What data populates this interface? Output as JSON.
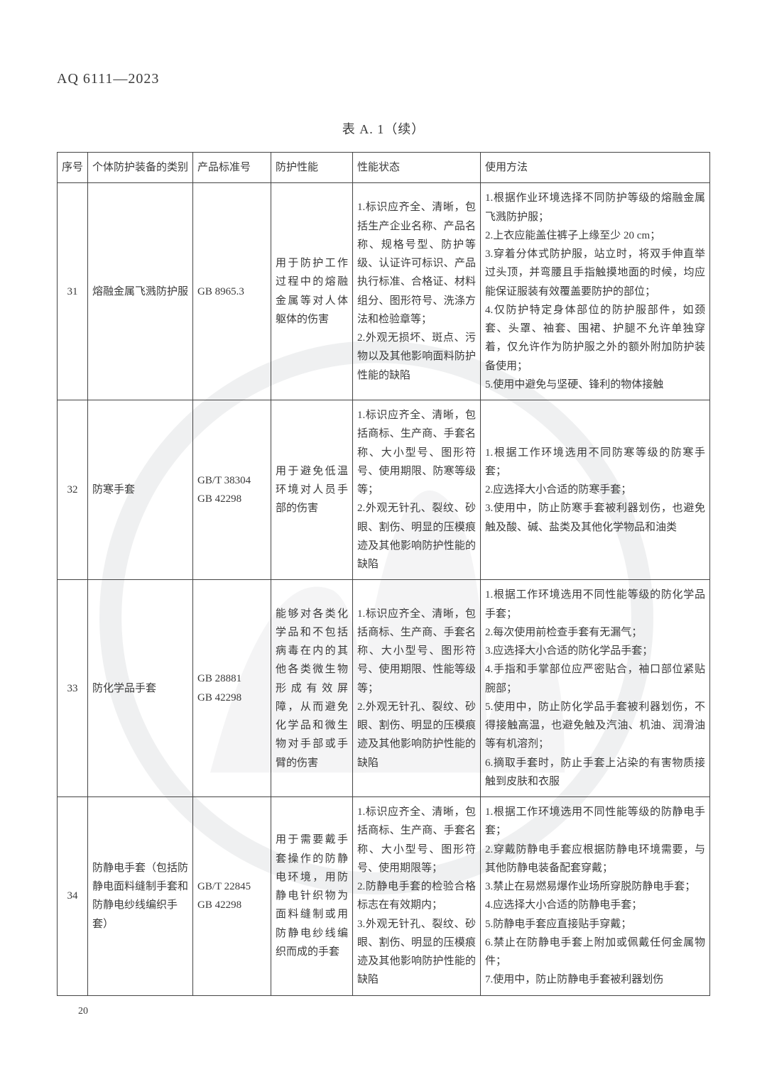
{
  "doc_header": "AQ 6111—2023",
  "table_caption": "表 A. 1（续）",
  "page_number": "20",
  "columns": [
    "序号",
    "个体防护装备的类别",
    "产品标准号",
    "防护性能",
    "性能状态",
    "使用方法"
  ],
  "watermark": {
    "outer_color": "#9aa0a4",
    "inner_color": "#b8bdc1"
  },
  "rows": [
    {
      "idx": "31",
      "category": "熔融金属飞溅防护服",
      "standard": "GB 8965.3",
      "performance": "用于防护工作过程中的熔融金属等对人体躯体的伤害",
      "state": "1.标识应齐全、清晰，包括生产企业名称、产品名称、规格号型、防护等级、认证许可标识、产品执行标准、合格证、材料组分、图形符号、洗涤方法和检验章等；\n2.外观无损坏、斑点、污物以及其他影响面料防护性能的缺陷",
      "usage": "1.根据作业环境选择不同防护等级的熔融金属飞溅防护服；\n2.上衣应能盖住裤子上缘至少 20 cm；\n3.穿着分体式防护服，站立时，将双手伸直举过头顶，并弯腰且手指触摸地面的时候，均应能保证服装有效覆盖要防护的部位；\n4.仅防护特定身体部位的防护服部件，如颈套、头罩、袖套、围裙、护腿不允许单独穿着，仅允许作为防护服之外的额外附加防护装备使用；\n5.使用中避免与坚硬、锋利的物体接触"
    },
    {
      "idx": "32",
      "category": "防寒手套",
      "standard": "GB/T 38304\nGB 42298",
      "performance": "用于避免低温环境对人员手部的伤害",
      "state": "1.标识应齐全、清晰，包括商标、生产商、手套名称、大小型号、图形符号、使用期限、防寒等级等；\n2.外观无针孔、裂纹、砂眼、割伤、明显的压模痕迹及其他影响防护性能的缺陷",
      "usage": "1.根据工作环境选用不同防寒等级的防寒手套；\n2.应选择大小合适的防寒手套；\n3.使用中，防止防寒手套被利器划伤，也避免触及酸、碱、盐类及其他化学物品和油类"
    },
    {
      "idx": "33",
      "category": "防化学品手套",
      "standard": "GB 28881\nGB 42298",
      "performance": "能够对各类化学品和不包括病毒在内的其他各类微生物形成有效屏障，从而避免化学品和微生物对手部或手臂的伤害",
      "state": "1.标识应齐全、清晰，包括商标、生产商、手套名称、大小型号、图形符号、使用期限、性能等级等；\n2.外观无针孔、裂纹、砂眼、割伤、明显的压模痕迹及其他影响防护性能的缺陷",
      "usage": "1.根据工作环境选用不同性能等级的防化学品手套；\n2.每次使用前检查手套有无漏气；\n3.应选择大小合适的防化学品手套；\n4.手指和手掌部位应严密贴合，袖口部位紧贴腕部；\n5.使用中，防止防化学品手套被利器划伤，不得接触高温，也避免触及汽油、机油、润滑油等有机溶剂；\n6.摘取手套时，防止手套上沾染的有害物质接触到皮肤和衣服"
    },
    {
      "idx": "34",
      "category": "防静电手套（包括防静电面料缝制手套和防静电纱线编织手套）",
      "standard": "GB/T 22845\nGB 42298",
      "performance": "用于需要戴手套操作的防静电环境，用防静电针织物为面料缝制或用防静电纱线编织而成的手套",
      "state": "1.标识应齐全、清晰，包括商标、生产商、手套名称、大小型号、图形符号、使用期限等；\n2.防静电手套的检验合格标志在有效期内；\n3.外观无针孔、裂纹、砂眼、割伤、明显的压模痕迹及其他影响防护性能的缺陷",
      "usage": "1.根据工作环境选用不同性能等级的防静电手套；\n2.穿戴防静电手套应根据防静电环境需要，与其他防静电装备配套穿戴；\n3.禁止在易燃易爆作业场所穿脱防静电手套；\n4.应选择大小合适的防静电手套；\n5.防静电手套应直接贴手穿戴；\n6.禁止在防静电手套上附加或佩戴任何金属物件；\n7.使用中，防止防静电手套被利器划伤"
    }
  ]
}
